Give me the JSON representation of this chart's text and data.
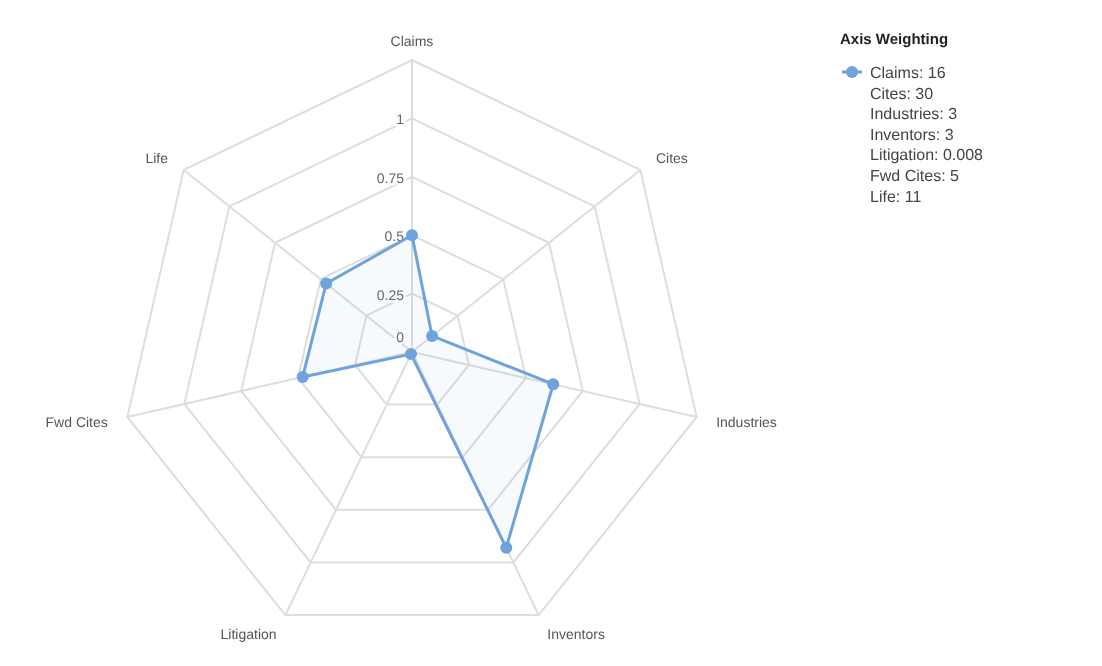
{
  "chart_data": {
    "type": "radar",
    "categories": [
      "Claims",
      "Cites",
      "Industries",
      "Inventors",
      "Litigation",
      "Fwd Cites",
      "Life"
    ],
    "series": [
      {
        "name": "Claims: 16\nCites: 30\nIndustries: 3\nInventors: 3\nLitigation: 0.008\nFwd Cites: 5\nLife: 11",
        "color": "#6fa3dc",
        "values": [
          0.5,
          0.11,
          0.62,
          0.93,
          0.01,
          0.48,
          0.47
        ]
      }
    ],
    "ylim": [
      0,
      1.25
    ],
    "yticks": [
      0,
      0.25,
      0.5,
      0.75,
      1
    ],
    "legend_title": "Axis Weighting",
    "legend": "top right",
    "marker": "circle",
    "line_style": "solid",
    "grid": true
  }
}
